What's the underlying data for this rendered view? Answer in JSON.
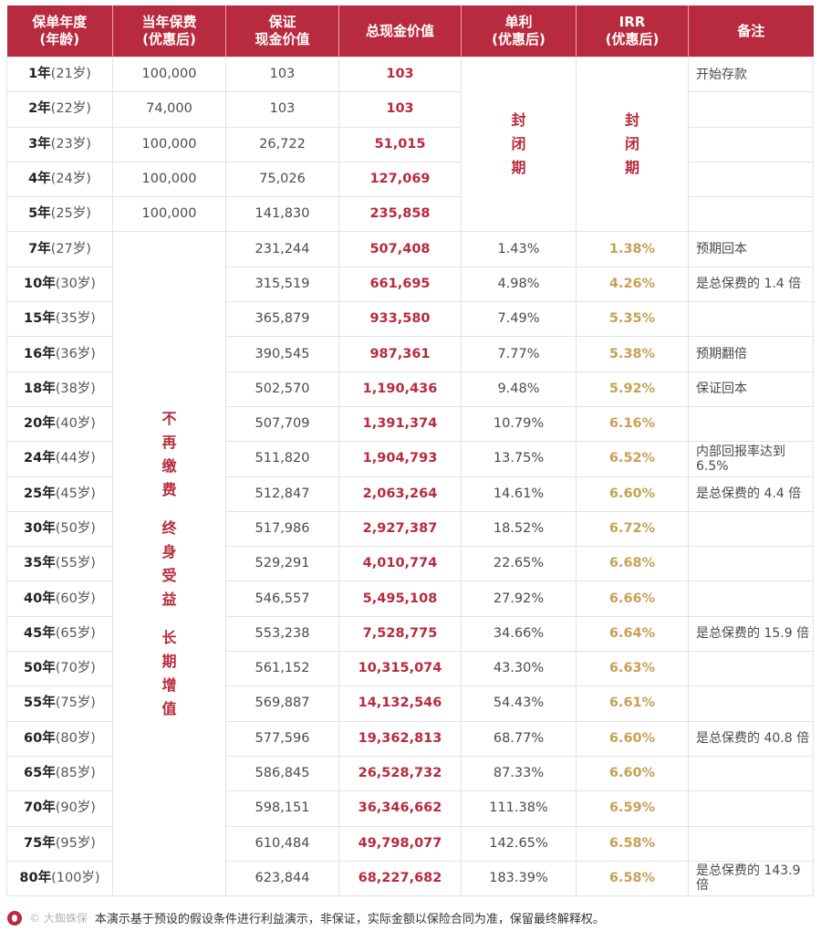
{
  "header": {
    "col1": [
      "保单年度",
      "(年龄)"
    ],
    "col2": [
      "当年保费",
      "(优惠后)"
    ],
    "col3": [
      "保证",
      "现金价值"
    ],
    "col4": "总现金价值",
    "col5": [
      "单利",
      "(优惠后)"
    ],
    "col6": [
      "IRR",
      "(优惠后)"
    ],
    "col7": "备注"
  },
  "closed_label": [
    "封",
    "闭",
    "期"
  ],
  "paid_up_label": [
    "不",
    "再",
    "缴",
    "费",
    "",
    "终",
    "身",
    "受",
    "益",
    "",
    "长",
    "期",
    "增",
    "值"
  ],
  "rows": [
    {
      "year": "1年",
      "age": "(21岁)",
      "premium": "100,000",
      "guaranteed": "103",
      "total": "103",
      "note": "开始存款"
    },
    {
      "year": "2年",
      "age": "(22岁)",
      "premium": "74,000",
      "guaranteed": "103",
      "total": "103",
      "note": ""
    },
    {
      "year": "3年",
      "age": "(23岁)",
      "premium": "100,000",
      "guaranteed": "26,722",
      "total": "51,015",
      "note": ""
    },
    {
      "year": "4年",
      "age": "(24岁)",
      "premium": "100,000",
      "guaranteed": "75,026",
      "total": "127,069",
      "note": ""
    },
    {
      "year": "5年",
      "age": "(25岁)",
      "premium": "100,000",
      "guaranteed": "141,830",
      "total": "235,858",
      "note": ""
    },
    {
      "year": "7年",
      "age": "(27岁)",
      "guaranteed": "231,244",
      "total": "507,408",
      "simple": "1.43%",
      "irr": "1.38%",
      "note": "预期回本"
    },
    {
      "year": "10年",
      "age": "(30岁)",
      "guaranteed": "315,519",
      "total": "661,695",
      "simple": "4.98%",
      "irr": "4.26%",
      "note": "是总保费的 1.4 倍"
    },
    {
      "year": "15年",
      "age": "(35岁)",
      "guaranteed": "365,879",
      "total": "933,580",
      "simple": "7.49%",
      "irr": "5.35%",
      "note": ""
    },
    {
      "year": "16年",
      "age": "(36岁)",
      "guaranteed": "390,545",
      "total": "987,361",
      "simple": "7.77%",
      "irr": "5.38%",
      "note": "预期翻倍"
    },
    {
      "year": "18年",
      "age": "(38岁)",
      "guaranteed": "502,570",
      "total": "1,190,436",
      "simple": "9.48%",
      "irr": "5.92%",
      "note": "保证回本"
    },
    {
      "year": "20年",
      "age": "(40岁)",
      "guaranteed": "507,709",
      "total": "1,391,374",
      "simple": "10.79%",
      "irr": "6.16%",
      "note": ""
    },
    {
      "year": "24年",
      "age": "(44岁)",
      "guaranteed": "511,820",
      "total": "1,904,793",
      "simple": "13.75%",
      "irr": "6.52%",
      "note": "内部回报率达到 6.5%"
    },
    {
      "year": "25年",
      "age": "(45岁)",
      "guaranteed": "512,847",
      "total": "2,063,264",
      "simple": "14.61%",
      "irr": "6.60%",
      "note": "是总保费的 4.4 倍"
    },
    {
      "year": "30年",
      "age": "(50岁)",
      "guaranteed": "517,986",
      "total": "2,927,387",
      "simple": "18.52%",
      "irr": "6.72%",
      "note": ""
    },
    {
      "year": "35年",
      "age": "(55岁)",
      "guaranteed": "529,291",
      "total": "4,010,774",
      "simple": "22.65%",
      "irr": "6.68%",
      "note": ""
    },
    {
      "year": "40年",
      "age": "(60岁)",
      "guaranteed": "546,557",
      "total": "5,495,108",
      "simple": "27.92%",
      "irr": "6.66%",
      "note": ""
    },
    {
      "year": "45年",
      "age": "(65岁)",
      "guaranteed": "553,238",
      "total": "7,528,775",
      "simple": "34.66%",
      "irr": "6.64%",
      "note": "是总保费的 15.9 倍"
    },
    {
      "year": "50年",
      "age": "(70岁)",
      "guaranteed": "561,152",
      "total": "10,315,074",
      "simple": "43.30%",
      "irr": "6.63%",
      "note": ""
    },
    {
      "year": "55年",
      "age": "(75岁)",
      "guaranteed": "569,887",
      "total": "14,132,546",
      "simple": "54.43%",
      "irr": "6.61%",
      "note": ""
    },
    {
      "year": "60年",
      "age": "(80岁)",
      "guaranteed": "577,596",
      "total": "19,362,813",
      "simple": "68.77%",
      "irr": "6.60%",
      "note": "是总保费的 40.8 倍"
    },
    {
      "year": "65年",
      "age": "(85岁)",
      "guaranteed": "586,845",
      "total": "26,528,732",
      "simple": "87.33%",
      "irr": "6.60%",
      "note": ""
    },
    {
      "year": "70年",
      "age": "(90岁)",
      "guaranteed": "598,151",
      "total": "36,346,662",
      "simple": "111.38%",
      "irr": "6.59%",
      "note": ""
    },
    {
      "year": "75年",
      "age": "(95岁)",
      "guaranteed": "610,484",
      "total": "49,798,077",
      "simple": "142.65%",
      "irr": "6.58%",
      "note": ""
    },
    {
      "year": "80年",
      "age": "(100岁)",
      "guaranteed": "623,844",
      "total": "68,227,682",
      "simple": "183.39%",
      "irr": "6.58%",
      "note": "是总保费的 143.9 倍"
    }
  ],
  "footer": {
    "watermark": "© 大蜘蛛保",
    "text": "本演示基于预设的假设条件进行利益演示，非保证，实际金额以保险合同为准，保留最终解释权。"
  },
  "colors": {
    "brand_red": "#b82a3d",
    "irr_gold": "#c6a154"
  }
}
